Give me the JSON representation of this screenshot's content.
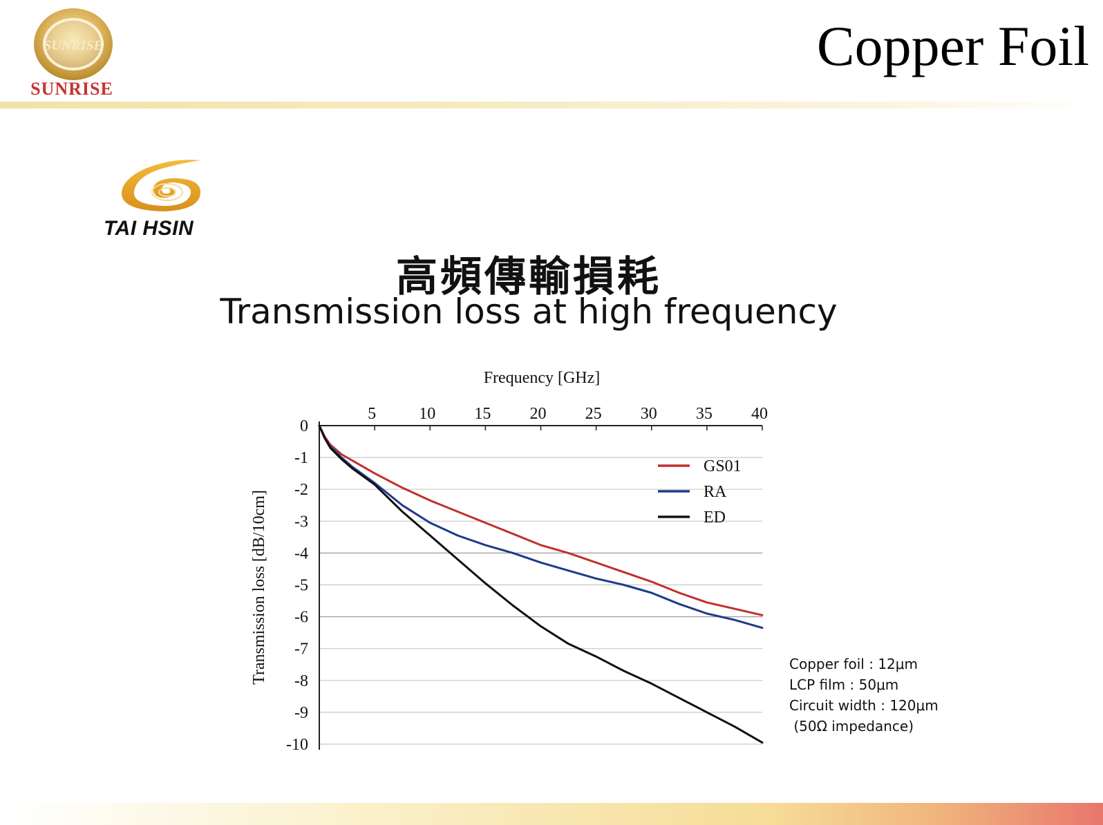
{
  "page": {
    "title": "Copper Foil",
    "brand_text": "SUNRISE",
    "logo_text": "SUNRISE",
    "partner_text": "TAI HSIN",
    "title_zh": "高頻傳輸損耗",
    "title_en": "Transmission loss at high frequency",
    "colors": {
      "brand_red": "#c8322f",
      "gold": "#e0b04a"
    }
  },
  "annotations": [
    "Copper foil : 12μm",
    "LCP film : 50μm",
    "Circuit width : 120μm",
    " (50Ω impedance)"
  ],
  "chart_data": {
    "type": "line",
    "title": "",
    "xlabel": "Frequency [GHz]",
    "ylabel": "Transmission loss [dB/10cm]",
    "xlim": [
      0,
      40
    ],
    "ylim": [
      -10,
      0
    ],
    "xticks": [
      "5",
      "10",
      "15",
      "20",
      "25",
      "30",
      "35",
      "40"
    ],
    "xtick_values": [
      5,
      10,
      15,
      20,
      25,
      30,
      35,
      40
    ],
    "yticks": [
      "0",
      "-1",
      "-2",
      "-3",
      "-4",
      "-5",
      "-6",
      "-7",
      "-8",
      "-9",
      "-10"
    ],
    "ytick_values": [
      0,
      -1,
      -2,
      -3,
      -4,
      -5,
      -6,
      -7,
      -8,
      -9,
      -10
    ],
    "x_axis_position": "top",
    "grid": true,
    "legend_position": "top-right",
    "series": [
      {
        "name": "GS01",
        "color": "#c0302e",
        "x": [
          0,
          0.5,
          1,
          2,
          3,
          5,
          7.5,
          10,
          12.5,
          15,
          17.5,
          20,
          22.5,
          25,
          27.5,
          30,
          32.5,
          35,
          37.5,
          40
        ],
        "y": [
          0,
          -0.35,
          -0.6,
          -0.9,
          -1.1,
          -1.5,
          -1.95,
          -2.35,
          -2.7,
          -3.05,
          -3.4,
          -3.75,
          -4.0,
          -4.3,
          -4.6,
          -4.9,
          -5.25,
          -5.55,
          -5.75,
          -5.95
        ]
      },
      {
        "name": "RA",
        "color": "#1f3a8a",
        "x": [
          0,
          0.5,
          1,
          2,
          3,
          5,
          7.5,
          10,
          12.5,
          15,
          17.5,
          20,
          22.5,
          25,
          27.5,
          30,
          32.5,
          35,
          37.5,
          40
        ],
        "y": [
          0,
          -0.4,
          -0.65,
          -1.0,
          -1.3,
          -1.8,
          -2.5,
          -3.05,
          -3.45,
          -3.75,
          -4.0,
          -4.3,
          -4.55,
          -4.8,
          -5.0,
          -5.25,
          -5.6,
          -5.9,
          -6.1,
          -6.35
        ]
      },
      {
        "name": "ED",
        "color": "#111111",
        "x": [
          0,
          0.5,
          1,
          2,
          3,
          5,
          7.5,
          10,
          12.5,
          15,
          17.5,
          20,
          22.5,
          25,
          27.5,
          30,
          32.5,
          35,
          37.5,
          40
        ],
        "y": [
          0,
          -0.4,
          -0.7,
          -1.05,
          -1.35,
          -1.85,
          -2.7,
          -3.45,
          -4.2,
          -4.95,
          -5.65,
          -6.3,
          -6.85,
          -7.25,
          -7.7,
          -8.1,
          -8.55,
          -9.0,
          -9.45,
          -9.95
        ]
      }
    ]
  }
}
